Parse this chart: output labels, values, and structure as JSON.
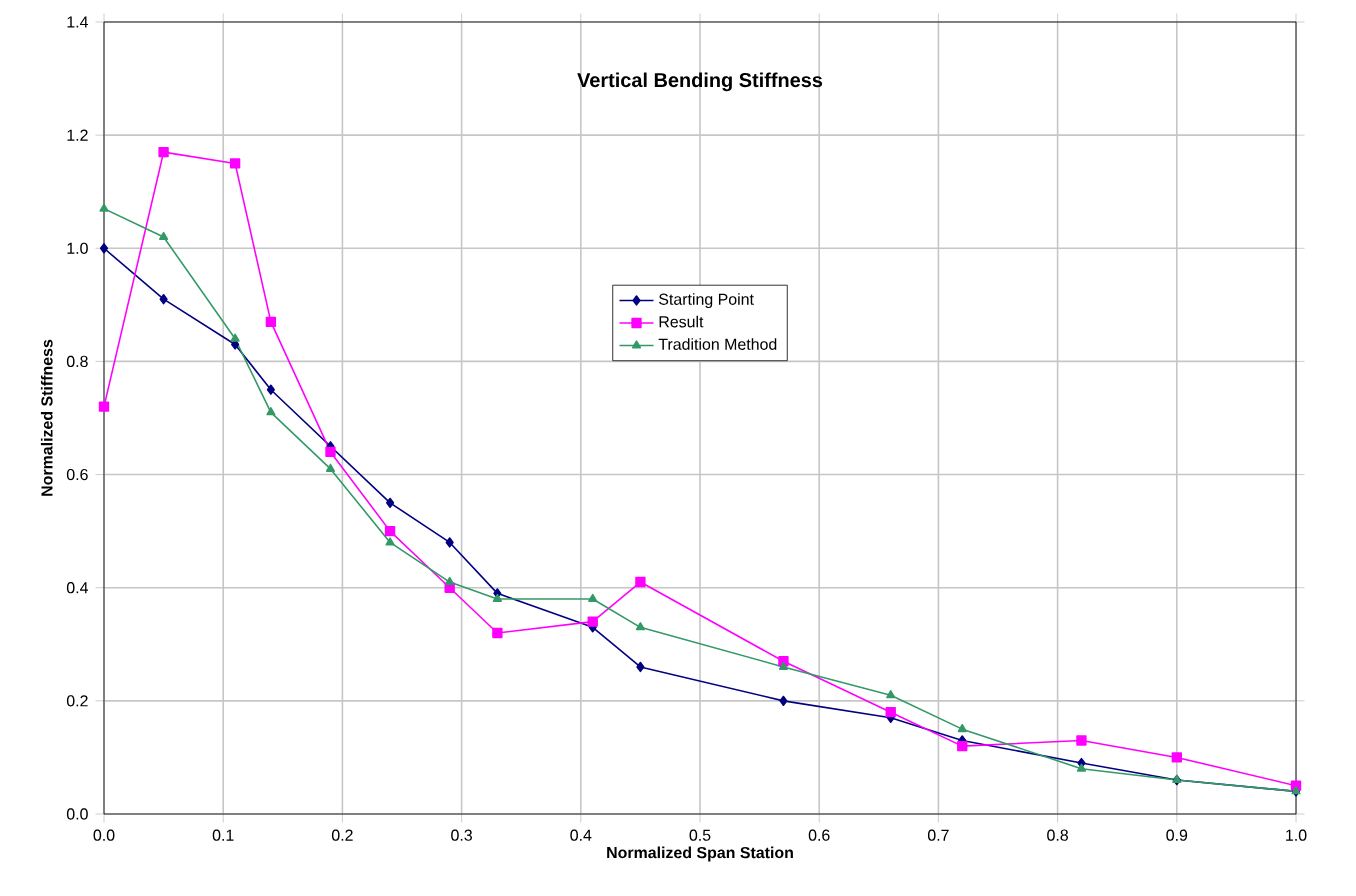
{
  "chart_data": {
    "type": "line",
    "title": "Vertical Bending Stiffness",
    "xlabel": "Normalized Span Station",
    "ylabel": "Normalized Stiffness",
    "x": [
      0,
      0.05,
      0.11,
      0.14,
      0.19,
      0.24,
      0.29,
      0.33,
      0.41,
      0.45,
      0.57,
      0.66,
      0.72,
      0.82,
      0.9,
      1.0
    ],
    "series": [
      {
        "name": "Starting Point",
        "color": "#000080",
        "marker": "diamond",
        "values": [
          1.0,
          0.91,
          0.83,
          0.75,
          0.65,
          0.55,
          0.48,
          0.39,
          0.33,
          0.26,
          0.2,
          0.17,
          0.13,
          0.09,
          0.06,
          0.04
        ]
      },
      {
        "name": "Result",
        "color": "#ff00ff",
        "marker": "square",
        "values": [
          0.72,
          1.17,
          1.15,
          0.87,
          0.64,
          0.5,
          0.4,
          0.32,
          0.34,
          0.41,
          0.27,
          0.18,
          0.12,
          0.13,
          0.1,
          0.05
        ]
      },
      {
        "name": "Tradition Method",
        "color": "#339966",
        "marker": "triangle",
        "values": [
          1.07,
          1.02,
          0.84,
          0.71,
          0.61,
          0.48,
          0.41,
          0.38,
          0.38,
          0.33,
          0.26,
          0.21,
          0.15,
          0.08,
          0.06,
          0.04
        ]
      }
    ],
    "xlim": [
      0,
      1.0
    ],
    "ylim": [
      0,
      1.4
    ],
    "xticks": [
      {
        "value": 0,
        "label": "0.0"
      },
      0.1,
      0.2,
      0.3,
      0.4,
      0.5,
      0.6,
      0.7,
      0.8,
      0.9,
      {
        "value": 1,
        "label": "1.0"
      }
    ],
    "yticks": [
      {
        "value": 0,
        "label": "0.0"
      },
      0.2,
      0.4,
      0.6,
      0.8,
      {
        "value": 1,
        "label": "1.0"
      },
      1.2,
      1.4
    ],
    "grid": true,
    "legend": "center",
    "line_style": "solid"
  }
}
